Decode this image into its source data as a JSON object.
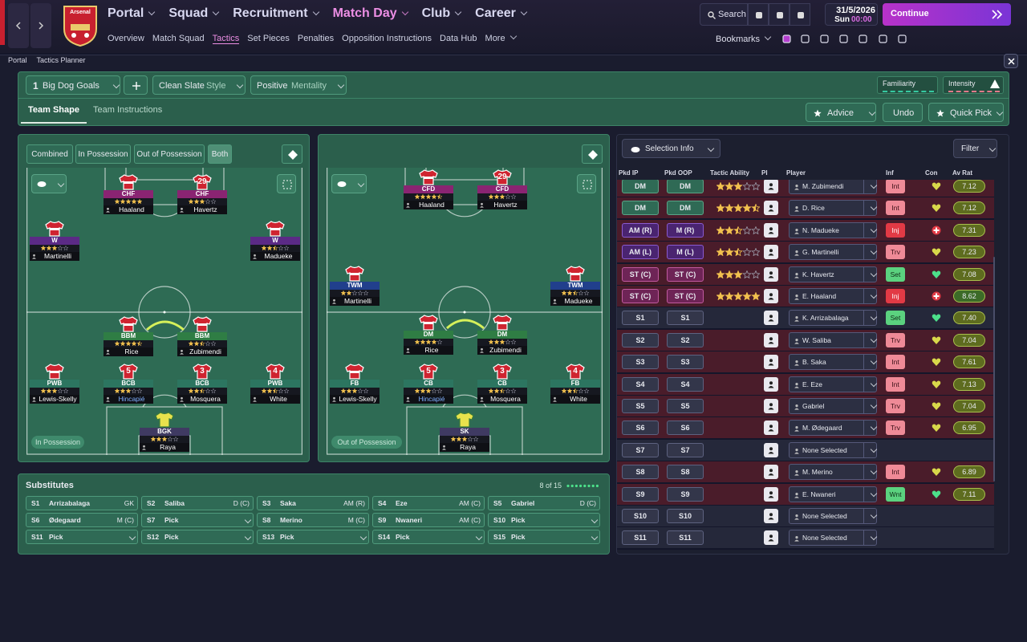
{
  "topbar": {
    "club": "Arsenal",
    "nav": [
      "Portal",
      "Squad",
      "Recruitment",
      "Match Day",
      "Club",
      "Career"
    ],
    "subnav": [
      "Overview",
      "Match Squad",
      "Tactics",
      "Set Pieces",
      "Penalties",
      "Opposition Instructions",
      "Data Hub",
      "More"
    ],
    "search": "Search",
    "date": "31/5/2026",
    "day": "Sun",
    "time": "00:00",
    "continue": "Continue",
    "bookmarks": "Bookmarks"
  },
  "breadcrumb": [
    "Portal",
    "Tactics Planner"
  ],
  "toolbar": {
    "tactic_number": "1",
    "tactic": "Big Dog Goals",
    "style": "Clean Slate",
    "style_label": "Style",
    "mentality": "Positive",
    "mentality_label": "Mentality",
    "familiarity": "Familiarity",
    "intensity": "Intensity"
  },
  "tabs": [
    "Team Shape",
    "Team Instructions"
  ],
  "actions": [
    "Advice",
    "Undo",
    "Quick Pick"
  ],
  "view_modes": [
    "Combined",
    "In Possession",
    "Out of Possession",
    "Both"
  ],
  "pitches": [
    {
      "label": "In Possession",
      "players": [
        {
          "role": "CHF",
          "name": "Haaland",
          "stars": 5
        },
        {
          "role": "CHF",
          "name": "Havertz",
          "stars": 3,
          "shirt": 29
        },
        {
          "role": "W",
          "name": "Martinelli",
          "stars": 3
        },
        {
          "role": "W",
          "name": "Madueke",
          "stars": 2.5
        },
        {
          "role": "BBM",
          "name": "Rice",
          "stars": 4.5
        },
        {
          "role": "BBM",
          "name": "Zubimendi",
          "stars": 2.5
        },
        {
          "role": "PWB",
          "name": "Lewis-Skelly",
          "stars": 3
        },
        {
          "role": "BCB",
          "name": "Hincapié",
          "stars": 3,
          "shirt": 5
        },
        {
          "role": "BCB",
          "name": "Mosquera",
          "stars": 2.5,
          "shirt": 3
        },
        {
          "role": "PWB",
          "name": "White",
          "stars": 2.5,
          "shirt": 4
        },
        {
          "role": "BGK",
          "name": "Raya",
          "stars": 3
        }
      ]
    },
    {
      "label": "Out of Possession",
      "players": [
        {
          "role": "CFD",
          "name": "Haaland",
          "stars": 4.5
        },
        {
          "role": "CFD",
          "name": "Havertz",
          "stars": 3,
          "shirt": 29
        },
        {
          "role": "TWM",
          "name": "Martinelli",
          "stars": 2
        },
        {
          "role": "TWM",
          "name": "Madueke",
          "stars": 2.5
        },
        {
          "role": "DM",
          "name": "Rice",
          "stars": 4
        },
        {
          "role": "DM",
          "name": "Zubimendi",
          "stars": 3
        },
        {
          "role": "FB",
          "name": "Lewis-Skelly",
          "stars": 3
        },
        {
          "role": "CB",
          "name": "Hincapié",
          "stars": 3,
          "shirt": 5
        },
        {
          "role": "CB",
          "name": "Mosquera",
          "stars": 2.5,
          "shirt": 3
        },
        {
          "role": "FB",
          "name": "White",
          "stars": 2.5,
          "shirt": 4
        },
        {
          "role": "SK",
          "name": "Raya",
          "stars": 3
        }
      ]
    }
  ],
  "substitutes": {
    "title": "Substitutes",
    "count": "8 of 15",
    "slots": [
      {
        "slot": "S1",
        "name": "Arrizabalaga",
        "position": "GK"
      },
      {
        "slot": "S2",
        "name": "Saliba",
        "position": "D (C)"
      },
      {
        "slot": "S3",
        "name": "Saka",
        "position": "AM (R)"
      },
      {
        "slot": "S4",
        "name": "Eze",
        "position": "AM (C)"
      },
      {
        "slot": "S5",
        "name": "Gabriel",
        "position": "D (C)"
      },
      {
        "slot": "S6",
        "name": "Ødegaard",
        "position": "M (C)"
      },
      {
        "slot": "S7",
        "name": "Pick"
      },
      {
        "slot": "S8",
        "name": "Merino",
        "position": "M (C)"
      },
      {
        "slot": "S9",
        "name": "Nwaneri",
        "position": "AM (C)"
      },
      {
        "slot": "S10",
        "name": "Pick"
      },
      {
        "slot": "S11",
        "name": "Pick"
      },
      {
        "slot": "S12",
        "name": "Pick"
      },
      {
        "slot": "S13",
        "name": "Pick"
      },
      {
        "slot": "S14",
        "name": "Pick"
      },
      {
        "slot": "S15",
        "name": "Pick"
      }
    ]
  },
  "selection": {
    "title": "Selection Info",
    "filter": "Filter",
    "columns": [
      "Pkd IP",
      "Pkd OOP",
      "Tactic Ability",
      "PI",
      "Player",
      "Inf",
      "Con",
      "Av Rat"
    ],
    "rows": [
      {
        "ip": "DM",
        "oop": "DM",
        "ability": 3,
        "player": "M. Zubimendi",
        "inf": "Int",
        "rating": "7.12"
      },
      {
        "ip": "DM",
        "oop": "DM",
        "ability": 4.5,
        "player": "D. Rice",
        "inf": "Int",
        "rating": "7.12"
      },
      {
        "ip": "AM (R)",
        "oop": "M (R)",
        "ability": 2.5,
        "player": "N. Madueke",
        "inf": "Inj",
        "rating": "7.31"
      },
      {
        "ip": "AM (L)",
        "oop": "M (L)",
        "ability": 2.5,
        "player": "G. Martinelli",
        "inf": "Trv",
        "rating": "7.23"
      },
      {
        "ip": "ST (C)",
        "oop": "ST (C)",
        "ability": 3,
        "player": "K. Havertz",
        "inf": "Set",
        "rating": "7.08"
      },
      {
        "ip": "ST (C)",
        "oop": "ST (C)",
        "ability": 5,
        "player": "E. Haaland",
        "inf": "Inj",
        "rating": "8.62"
      },
      {
        "ip": "S1",
        "oop": "S1",
        "player": "K. Arrizabalaga",
        "inf": "Set",
        "rating": "7.40"
      },
      {
        "ip": "S2",
        "oop": "S2",
        "player": "W. Saliba",
        "inf": "Trv",
        "rating": "7.04"
      },
      {
        "ip": "S3",
        "oop": "S3",
        "player": "B. Saka",
        "inf": "Int",
        "rating": "7.61"
      },
      {
        "ip": "S4",
        "oop": "S4",
        "player": "E. Eze",
        "inf": "Int",
        "rating": "7.13"
      },
      {
        "ip": "S5",
        "oop": "S5",
        "player": "Gabriel",
        "inf": "Trv",
        "rating": "7.04"
      },
      {
        "ip": "S6",
        "oop": "S6",
        "player": "M. Ødegaard",
        "inf": "Trv",
        "rating": "6.95"
      },
      {
        "ip": "S7",
        "oop": "S7",
        "player": "None Selected"
      },
      {
        "ip": "S8",
        "oop": "S8",
        "player": "M. Merino",
        "inf": "Int",
        "rating": "6.89"
      },
      {
        "ip": "S9",
        "oop": "S9",
        "player": "E. Nwaneri",
        "inf": "Wnt",
        "rating": "7.11"
      },
      {
        "ip": "S10",
        "oop": "S10",
        "player": "None Selected"
      },
      {
        "ip": "S11",
        "oop": "S11",
        "player": "None Selected"
      }
    ]
  }
}
